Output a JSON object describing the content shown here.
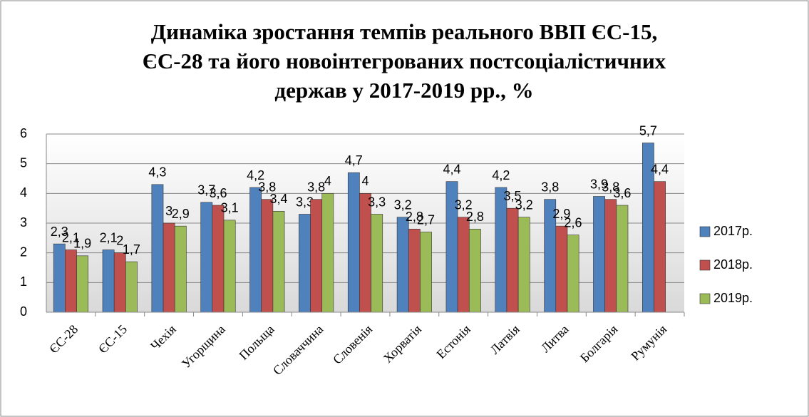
{
  "chart_data": {
    "type": "bar",
    "title": [
      "Динаміка зростання темпів реального ВВП ЄС-15,",
      "ЄС-28 та його новоінтегрованих постсоціалістичних",
      "держав у 2017-2019 рр., %"
    ],
    "categories": [
      "ЄС-28",
      "ЄС-15",
      "Чехія",
      "Угорщина",
      "Польща",
      "Словаччина",
      "Словенія",
      "Хорватія",
      "Естонія",
      "Латвія",
      "Литва",
      "Болгарія",
      "Румунія"
    ],
    "series": [
      {
        "name": "2017р.",
        "color": "#4f81bd",
        "values": [
          2.3,
          2.1,
          4.3,
          3.7,
          4.2,
          3.3,
          4.7,
          3.2,
          4.4,
          4.2,
          3.8,
          3.9,
          5.7
        ],
        "value_labels": [
          "2,3",
          "2,1",
          "4,3",
          "3,7",
          "4,2",
          "3,3",
          "4,7",
          "3,2",
          "4,4",
          "4,2",
          "3,8",
          "3,9",
          "5,7"
        ]
      },
      {
        "name": "2018р.",
        "color": "#c0504d",
        "values": [
          2.1,
          2,
          3,
          3.6,
          3.8,
          3.8,
          4,
          2.8,
          3.2,
          3.5,
          2.9,
          3.8,
          4.4
        ],
        "value_labels": [
          "2,1",
          "2",
          "3",
          "3,6",
          "3,8",
          "3,8",
          "4",
          "2,8",
          "3,2",
          "3,5",
          "2,9",
          "3,8",
          "4,4"
        ]
      },
      {
        "name": "2019р.",
        "color": "#9bbb59",
        "values": [
          1.9,
          1.7,
          2.9,
          3.1,
          3.4,
          4,
          3.3,
          2.7,
          2.8,
          3.2,
          2.6,
          3.6,
          null
        ],
        "value_labels": [
          "1,9",
          "1,7",
          "2,9",
          "3,1",
          "3,4",
          "4",
          "3,3",
          "2,7",
          "2,8",
          "3,2",
          "2,6",
          "3,6",
          null
        ]
      }
    ],
    "ylim": [
      0,
      6
    ],
    "yticks": [
      0,
      1,
      2,
      3,
      4,
      5,
      6
    ],
    "grid": true,
    "legend": "right"
  }
}
